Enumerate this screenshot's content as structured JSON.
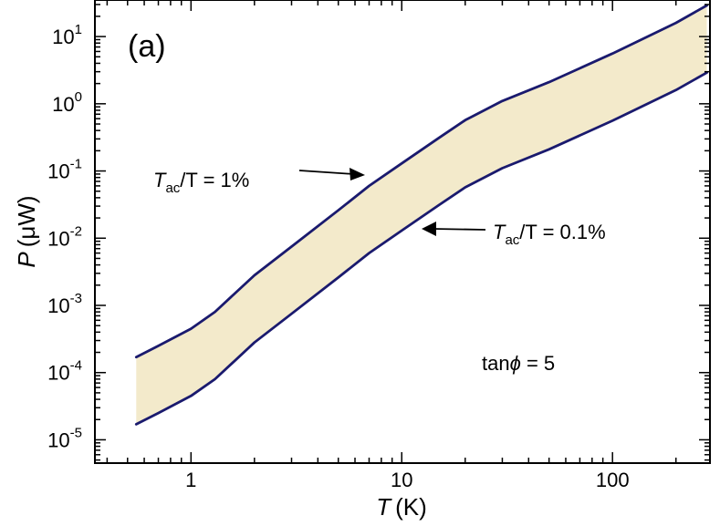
{
  "chart_data": {
    "type": "area",
    "panel_label": "(a)",
    "xlabel": {
      "var": "T",
      "unit": "(K)"
    },
    "ylabel": {
      "var": "P",
      "unit": "(μW)"
    },
    "xscale": "log",
    "yscale": "log",
    "xlim": [
      0.35,
      290
    ],
    "ylim": [
      4.5e-06,
      35
    ],
    "x_ticks": [
      {
        "value": 1,
        "label": "1"
      },
      {
        "value": 10,
        "label": "10"
      },
      {
        "value": 100,
        "label": "100"
      }
    ],
    "y_ticks": [
      {
        "value": 1e-05,
        "base": "10",
        "exp": "-5"
      },
      {
        "value": 0.0001,
        "base": "10",
        "exp": "-4"
      },
      {
        "value": 0.001,
        "base": "10",
        "exp": "-3"
      },
      {
        "value": 0.01,
        "base": "10",
        "exp": "-2"
      },
      {
        "value": 0.1,
        "base": "10",
        "exp": "-1"
      },
      {
        "value": 1,
        "base": "10",
        "exp": "0"
      },
      {
        "value": 10,
        "base": "10",
        "exp": "1"
      }
    ],
    "series": [
      {
        "line_color": "#1a1a6e",
        "x": [
          0.55,
          0.7,
          1,
          1.3,
          2,
          3,
          5,
          7,
          10,
          15,
          20,
          30,
          50,
          100,
          200,
          280
        ],
        "y": [
          0.00017,
          0.00025,
          0.00045,
          0.0008,
          0.0028,
          0.0075,
          0.026,
          0.06,
          0.13,
          0.31,
          0.57,
          1.1,
          2.1,
          5.6,
          16,
          29
        ]
      },
      {
        "line_color": "#1a1a6e",
        "x": [
          0.55,
          0.7,
          1,
          1.3,
          2,
          3,
          5,
          7,
          10,
          15,
          20,
          30,
          50,
          100,
          200,
          280
        ],
        "y": [
          1.7e-05,
          2.5e-05,
          4.5e-05,
          8e-05,
          0.00028,
          0.00075,
          0.0026,
          0.006,
          0.013,
          0.031,
          0.057,
          0.11,
          0.21,
          0.56,
          1.6,
          2.9
        ]
      }
    ],
    "fill_color": "#f3eacb",
    "annotations": [
      {
        "main": "T",
        "sub": "ac",
        "rest": "/T = 1%"
      },
      {
        "main": "T",
        "sub": "ac",
        "rest": "/T = 0.1%"
      },
      {
        "pre": "tan",
        "sym": "ϕ",
        "rest": " = 5"
      }
    ],
    "grid": false
  }
}
